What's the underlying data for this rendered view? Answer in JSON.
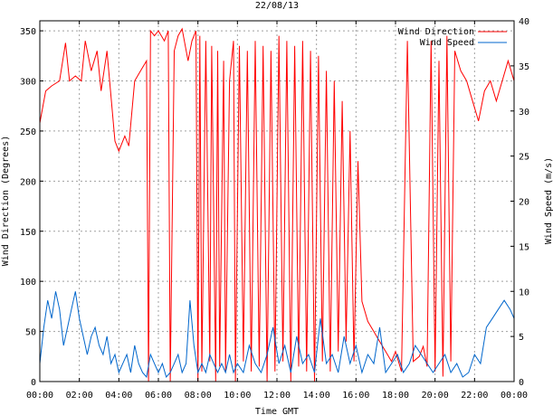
{
  "chart_data": {
    "type": "line",
    "title": "22/08/13",
    "xlabel": "Time GMT",
    "ylabel_left": "Wind Direction (Degrees)",
    "ylabel_right": "Wind Speed (m/s)",
    "x_ticks": [
      "00:00",
      "02:00",
      "04:00",
      "06:00",
      "08:00",
      "10:00",
      "12:00",
      "14:00",
      "16:00",
      "18:00",
      "20:00",
      "22:00",
      "00:00"
    ],
    "x_range_hours": [
      0,
      24
    ],
    "ylim_left": [
      0,
      360
    ],
    "y_ticks_left": [
      0,
      50,
      100,
      150,
      200,
      250,
      300,
      350
    ],
    "ylim_right": [
      0,
      40
    ],
    "y_ticks_right": [
      0,
      5,
      10,
      15,
      20,
      25,
      30,
      35,
      40
    ],
    "grid": true,
    "legend_position": "top-right",
    "series": [
      {
        "name": "Wind Direction",
        "axis": "left",
        "color": "#ff0000",
        "x": [
          0.0,
          0.3,
          0.6,
          1.0,
          1.3,
          1.5,
          1.8,
          2.1,
          2.3,
          2.6,
          2.9,
          3.1,
          3.4,
          3.8,
          4.0,
          4.3,
          4.5,
          4.8,
          5.1,
          5.4,
          5.5,
          5.6,
          5.8,
          6.0,
          6.3,
          6.5,
          6.6,
          6.8,
          7.0,
          7.2,
          7.5,
          7.7,
          7.9,
          8.0,
          8.1,
          8.2,
          8.4,
          8.6,
          8.7,
          8.9,
          9.0,
          9.1,
          9.3,
          9.4,
          9.6,
          9.8,
          9.9,
          10.1,
          10.3,
          10.5,
          10.7,
          10.9,
          11.1,
          11.3,
          11.5,
          11.7,
          11.9,
          12.1,
          12.3,
          12.5,
          12.7,
          12.9,
          13.1,
          13.3,
          13.5,
          13.7,
          13.9,
          14.1,
          14.3,
          14.5,
          14.7,
          14.9,
          15.1,
          15.3,
          15.5,
          15.7,
          15.9,
          16.1,
          16.3,
          16.6,
          16.9,
          17.2,
          17.5,
          17.8,
          18.0,
          18.3,
          18.6,
          18.9,
          19.2,
          19.4,
          19.6,
          19.8,
          20.0,
          20.2,
          20.4,
          20.6,
          20.8,
          21.0,
          21.3,
          21.6,
          21.9,
          22.2,
          22.5,
          22.8,
          23.1,
          23.4,
          23.7,
          24.0
        ],
        "y": [
          258,
          290,
          295,
          300,
          338,
          300,
          305,
          300,
          340,
          310,
          330,
          290,
          330,
          240,
          230,
          245,
          235,
          300,
          310,
          320,
          0,
          350,
          345,
          350,
          340,
          350,
          0,
          330,
          345,
          352,
          320,
          340,
          350,
          0,
          345,
          10,
          340,
          20,
          335,
          0,
          330,
          15,
          320,
          10,
          300,
          340,
          0,
          335,
          20,
          330,
          10,
          340,
          15,
          335,
          0,
          330,
          10,
          345,
          20,
          340,
          0,
          335,
          15,
          340,
          10,
          330,
          0,
          325,
          20,
          310,
          10,
          300,
          30,
          280,
          40,
          250,
          20,
          220,
          80,
          60,
          50,
          40,
          30,
          20,
          30,
          10,
          340,
          20,
          25,
          35,
          15,
          340,
          10,
          320,
          5,
          345,
          20,
          330,
          310,
          300,
          280,
          260,
          290,
          300,
          280,
          300,
          320,
          300
        ],
        "points_approx": true
      },
      {
        "name": "Wind Speed",
        "axis": "right",
        "color": "#0066cc",
        "x": [
          0.0,
          0.2,
          0.4,
          0.6,
          0.8,
          1.0,
          1.2,
          1.4,
          1.6,
          1.8,
          2.0,
          2.2,
          2.4,
          2.6,
          2.8,
          3.0,
          3.2,
          3.4,
          3.6,
          3.8,
          4.0,
          4.2,
          4.4,
          4.6,
          4.8,
          5.0,
          5.2,
          5.4,
          5.6,
          5.8,
          6.0,
          6.2,
          6.4,
          6.6,
          6.8,
          7.0,
          7.2,
          7.4,
          7.6,
          7.8,
          8.0,
          8.2,
          8.4,
          8.6,
          8.8,
          9.0,
          9.2,
          9.4,
          9.6,
          9.8,
          10.0,
          10.3,
          10.6,
          10.9,
          11.2,
          11.5,
          11.8,
          12.1,
          12.4,
          12.7,
          13.0,
          13.3,
          13.6,
          13.9,
          14.2,
          14.5,
          14.8,
          15.1,
          15.4,
          15.7,
          16.0,
          16.3,
          16.6,
          16.9,
          17.2,
          17.5,
          17.8,
          18.1,
          18.4,
          18.7,
          19.0,
          19.3,
          19.6,
          19.9,
          20.2,
          20.5,
          20.8,
          21.1,
          21.4,
          21.7,
          22.0,
          22.3,
          22.6,
          22.9,
          23.2,
          23.5,
          23.8,
          24.0
        ],
        "y": [
          2,
          6,
          9,
          7,
          10,
          8,
          4,
          6,
          8,
          10,
          7,
          5,
          3,
          5,
          6,
          4,
          3,
          5,
          2,
          3,
          1,
          2,
          3,
          1,
          4,
          2,
          1,
          0.5,
          3,
          2,
          1,
          2,
          0.5,
          1,
          2,
          3,
          1,
          2,
          9,
          4,
          1,
          2,
          1,
          3,
          2,
          1,
          2,
          1,
          3,
          1,
          2,
          1,
          4,
          2,
          1,
          3,
          6,
          2,
          4,
          1,
          5,
          2,
          3,
          1,
          7,
          2,
          3,
          1,
          5,
          2,
          4,
          1,
          3,
          2,
          6,
          1,
          2,
          3,
          1,
          2,
          4,
          3,
          2,
          1,
          2,
          3,
          1,
          2,
          0.5,
          1,
          3,
          2,
          6,
          7,
          8,
          9,
          8,
          7
        ],
        "points_approx": true
      }
    ]
  }
}
